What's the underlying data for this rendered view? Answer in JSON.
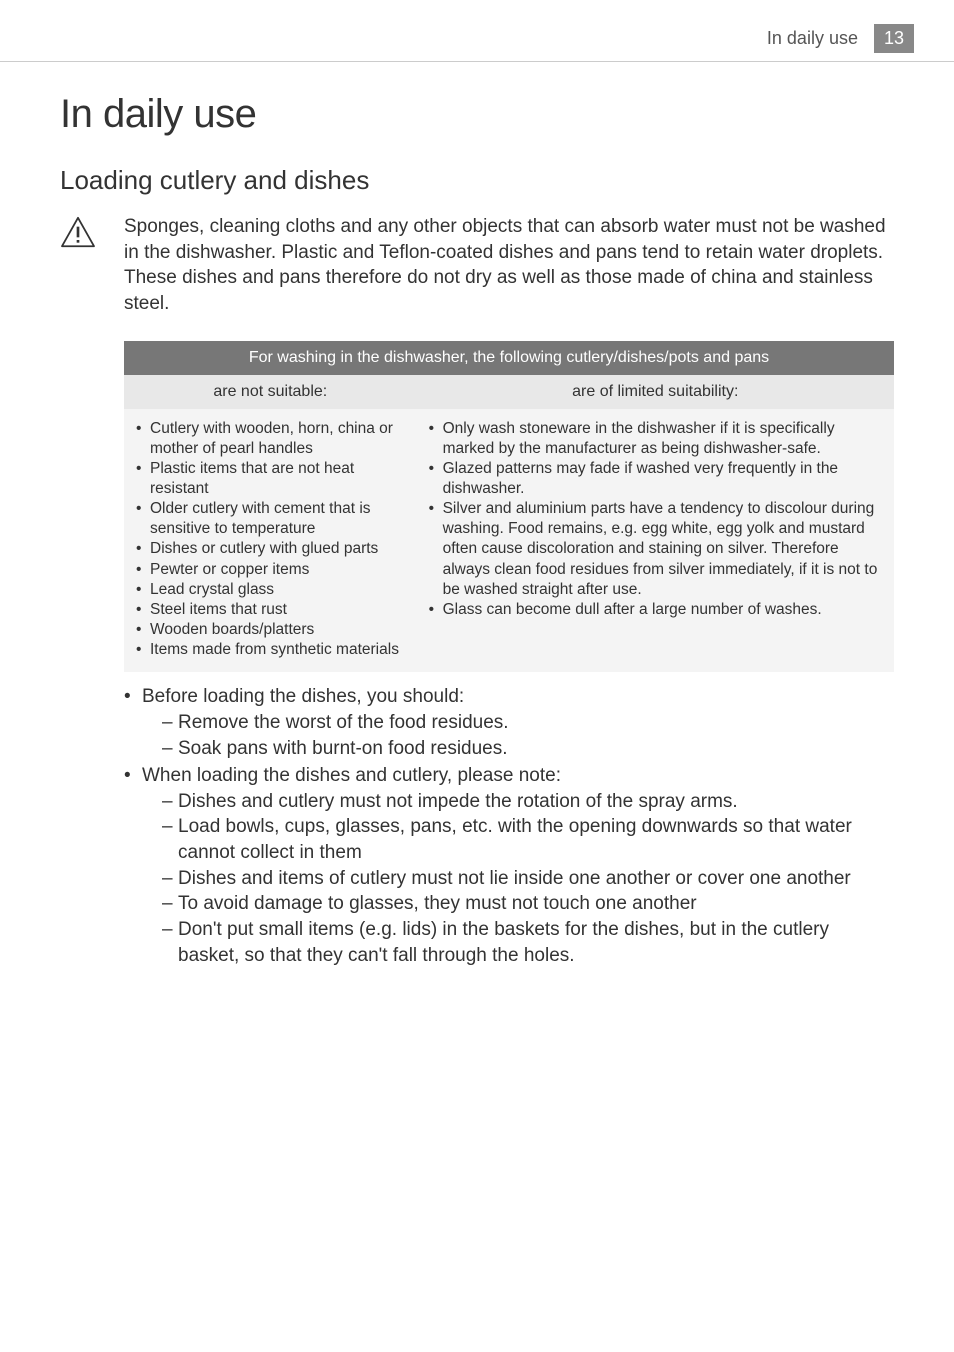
{
  "header": {
    "section_label": "In daily use",
    "page_number": "13"
  },
  "h1": "In daily use",
  "h2": "Loading cutlery and dishes",
  "warning": {
    "icon": "caution-triangle-icon",
    "text": "Sponges, cleaning cloths and any other objects that can absorb water must not be washed in the dishwasher. Plastic and Teflon-coated dishes and pans tend to retain water droplets. These dishes and pans therefore do not dry as well as those made of china and stainless steel."
  },
  "table": {
    "title": "For washing in the dishwasher, the following cutlery/dishes/pots and pans",
    "col_left_header": "are not suitable:",
    "col_right_header": "are of limited suitability:",
    "left_items": [
      "Cutlery with wooden, horn, china or mother of pearl handles",
      "Plastic items that are not heat resistant",
      "Older cutlery with cement that is sensitive to temperature",
      "Dishes or cutlery with glued parts",
      "Pewter or copper items",
      "Lead crystal glass",
      "Steel items that rust",
      "Wooden boards/platters",
      "Items made from synthetic materials"
    ],
    "right_items": [
      "Only wash stoneware in the dishwasher if it is specifically marked by the manufacturer as being dishwasher-safe.",
      "Glazed patterns may fade if washed very frequently in the dishwasher.",
      "Silver and aluminium parts have a tendency to discolour during washing. Food remains, e.g. egg white, egg yolk and mustard often cause discoloration and staining on silver. Therefore always clean food residues from silver immediately, if it is not to be washed straight after use.",
      "Glass can become dull after a large number of washes."
    ],
    "colors": {
      "title_bg": "#777777",
      "title_fg": "#ffffff",
      "subhead_bg": "#e8e8e8",
      "cell_bg": "#f4f4f4"
    }
  },
  "main_list": [
    {
      "text": "Before loading the dishes, you should:",
      "sub": [
        "Remove the worst of the food residues.",
        "Soak pans with burnt-on food residues."
      ]
    },
    {
      "text": "When loading the dishes and cutlery, please note:",
      "sub": [
        "Dishes and cutlery must not impede the rotation of the spray arms.",
        "Load bowls, cups, glasses, pans, etc. with the opening downwards so that water cannot collect in them",
        "Dishes and items of cutlery must not lie inside one another or cover one another",
        "To avoid damage to glasses, they must not touch one another",
        "Don't put small items (e.g. lids) in the baskets for the dishes, but in the cutlery basket, so that they can't fall through the holes."
      ]
    }
  ]
}
